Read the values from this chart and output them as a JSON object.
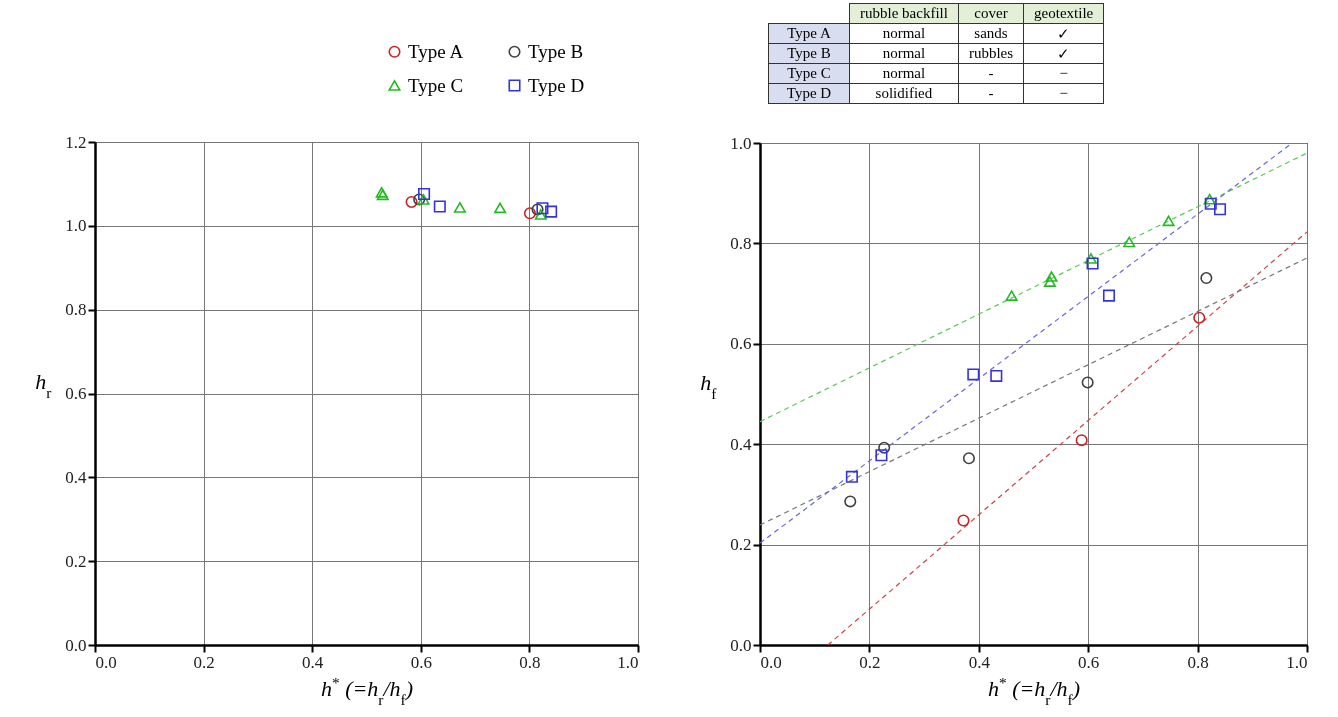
{
  "chart_data": [
    {
      "type": "scatter",
      "xlabel": "h$^{*}$ (=h$_{r}$/h$_{f}$)",
      "ylabel": "h$_{r}$",
      "xlim": [
        0,
        1.0
      ],
      "ylim": [
        0,
        1.2
      ],
      "xticks": [
        {
          "value": 0,
          "label": "0.0"
        },
        {
          "value": 0.2,
          "label": "0.2"
        },
        {
          "value": 0.4,
          "label": "0.4"
        },
        {
          "value": 0.6,
          "label": "0.6"
        },
        {
          "value": 0.8,
          "label": "0.8"
        },
        {
          "value": 1.0,
          "label": "1.0"
        }
      ],
      "yticks": [
        {
          "value": 0,
          "label": "0.0"
        },
        {
          "value": 0.2,
          "label": "0.2"
        },
        {
          "value": 0.4,
          "label": "0.4"
        },
        {
          "value": 0.6,
          "label": "0.6"
        },
        {
          "value": 0.8,
          "label": "0.8"
        },
        {
          "value": 1.0,
          "label": "1.0"
        },
        {
          "value": 1.2,
          "label": "1.2"
        }
      ],
      "grid": true,
      "legend": "top right",
      "series": [
        {
          "name": "Type A",
          "color": "#cc2222",
          "marker": "circle",
          "x": [
            0.583,
            0.801
          ],
          "values": [
            1.057,
            1.03
          ]
        },
        {
          "name": "Type B",
          "color": "#404040",
          "marker": "circle",
          "x": [
            0.597,
            0.815
          ],
          "values": [
            1.063,
            1.039
          ]
        },
        {
          "name": "Type C",
          "color": "#22bb22",
          "marker": "triangle",
          "x": [
            0.528,
            0.53,
            0.605,
            0.672,
            0.746,
            0.821
          ],
          "values": [
            1.08,
            1.074,
            1.063,
            1.044,
            1.043,
            1.027
          ]
        },
        {
          "name": "Type D",
          "color": "#3333dd",
          "marker": "square",
          "x": [
            0.606,
            0.635,
            0.824,
            0.84
          ],
          "values": [
            1.076,
            1.046,
            1.042,
            1.034
          ]
        }
      ]
    },
    {
      "type": "scatter",
      "xlabel": "h$^{*}$ (=h$_{r}$/h$_{f}$)",
      "ylabel": "h$_{f}$",
      "xlim": [
        0,
        1.0
      ],
      "ylim": [
        0,
        1.0
      ],
      "xticks": [
        {
          "value": 0,
          "label": "0.0"
        },
        {
          "value": 0.2,
          "label": "0.2"
        },
        {
          "value": 0.4,
          "label": "0.4"
        },
        {
          "value": 0.6,
          "label": "0.6"
        },
        {
          "value": 0.8,
          "label": "0.8"
        },
        {
          "value": 1.0,
          "label": "1.0"
        }
      ],
      "yticks": [
        {
          "value": 0,
          "label": "0.0"
        },
        {
          "value": 0.2,
          "label": "0.2"
        },
        {
          "value": 0.4,
          "label": "0.4"
        },
        {
          "value": 0.6,
          "label": "0.6"
        },
        {
          "value": 0.8,
          "label": "0.8"
        },
        {
          "value": 1.0,
          "label": "1.0"
        }
      ],
      "grid": true,
      "series": [
        {
          "type": "line",
          "color": "#cc4444",
          "line_style": "dashed",
          "x": [
            0.124,
            1.0
          ],
          "values": [
            0,
            0.823
          ]
        },
        {
          "type": "line",
          "color": "#777777",
          "line_style": "dashed",
          "x": [
            0,
            1.0
          ],
          "values": [
            0.239,
            0.771
          ]
        },
        {
          "type": "line",
          "color": "#55cc55",
          "line_style": "dashed",
          "x": [
            0,
            1.0
          ],
          "values": [
            0.445,
            0.98
          ]
        },
        {
          "type": "line",
          "color": "#6666dd",
          "line_style": "dashed",
          "x": [
            0,
            0.973
          ],
          "values": [
            0.203,
            1.0
          ]
        },
        {
          "color": "#cc2222",
          "marker": "circle",
          "x": [
            0.372,
            0.588,
            0.803
          ],
          "values": [
            0.248,
            0.408,
            0.652
          ]
        },
        {
          "color": "#404040",
          "marker": "circle",
          "x": [
            0.165,
            0.227,
            0.382,
            0.599,
            0.816
          ],
          "values": [
            0.286,
            0.393,
            0.372,
            0.523,
            0.731
          ]
        },
        {
          "color": "#22bb22",
          "marker": "triangle",
          "x": [
            0.46,
            0.53,
            0.533,
            0.605,
            0.675,
            0.747,
            0.822
          ],
          "values": [
            0.696,
            0.724,
            0.734,
            0.77,
            0.803,
            0.845,
            0.888
          ]
        },
        {
          "color": "#3333dd",
          "marker": "square",
          "x": [
            0.168,
            0.222,
            0.39,
            0.432,
            0.608,
            0.638,
            0.824,
            0.841
          ],
          "values": [
            0.335,
            0.378,
            0.539,
            0.536,
            0.76,
            0.696,
            0.879,
            0.868
          ]
        }
      ]
    },
    {
      "type": "other",
      "categories": [
        "rubble backfill",
        "cover",
        "geotextile"
      ],
      "y_categories": [
        "Type A",
        "Type B",
        "Type C",
        "Type D"
      ],
      "cell_labels": [
        [
          "normal",
          "sands",
          "✓"
        ],
        [
          "normal",
          "rubbles",
          "✓"
        ],
        [
          "normal",
          "-",
          "−"
        ],
        [
          "solidified",
          "-",
          "−"
        ]
      ]
    }
  ]
}
